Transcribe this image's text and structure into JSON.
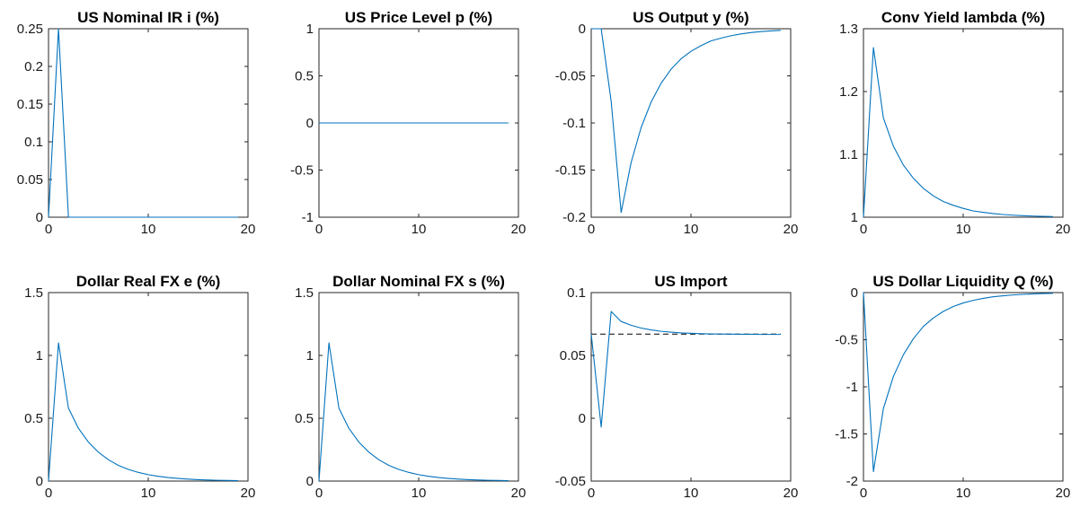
{
  "figure": {
    "background": "#ffffff",
    "line_color": "#0072BD",
    "axis_color": "#262626",
    "ref_line_color": "#000000"
  },
  "chart_data": [
    {
      "type": "line",
      "title": "US Nominal IR i (%)",
      "xlim": [
        0,
        20
      ],
      "ylim": [
        0,
        0.25
      ],
      "xticks": [
        0,
        10,
        20
      ],
      "xtick_labels": [
        "0",
        "10",
        "20"
      ],
      "yticks": [
        0,
        0.05,
        0.1,
        0.15,
        0.2,
        0.25
      ],
      "ytick_labels": [
        "0",
        "0.05",
        "0.1",
        "0.15",
        "0.2",
        "0.25"
      ],
      "grid": false,
      "series": [
        {
          "x": [
            0,
            1,
            2,
            3,
            4,
            5,
            6,
            7,
            8,
            9,
            10,
            11,
            12,
            13,
            14,
            15,
            16,
            17,
            18,
            19
          ],
          "values": [
            0,
            0.25,
            0,
            0,
            0,
            0,
            0,
            0,
            0,
            0,
            0,
            0,
            0,
            0,
            0,
            0,
            0,
            0,
            0,
            0
          ]
        }
      ]
    },
    {
      "type": "line",
      "title": "US Price Level p (%)",
      "xlim": [
        0,
        20
      ],
      "ylim": [
        -1,
        1
      ],
      "xticks": [
        0,
        10,
        20
      ],
      "xtick_labels": [
        "0",
        "10",
        "20"
      ],
      "yticks": [
        -1,
        -0.5,
        0,
        0.5,
        1
      ],
      "ytick_labels": [
        "-1",
        "-0.5",
        "0",
        "0.5",
        "1"
      ],
      "grid": false,
      "series": [
        {
          "x": [
            0,
            1,
            2,
            3,
            4,
            5,
            6,
            7,
            8,
            9,
            10,
            11,
            12,
            13,
            14,
            15,
            16,
            17,
            18,
            19
          ],
          "values": [
            0,
            0,
            0,
            0,
            0,
            0,
            0,
            0,
            0,
            0,
            0,
            0,
            0,
            0,
            0,
            0,
            0,
            0,
            0,
            0
          ]
        }
      ]
    },
    {
      "type": "line",
      "title": "US Output y (%)",
      "xlim": [
        0,
        20
      ],
      "ylim": [
        -0.2,
        0
      ],
      "xticks": [
        0,
        10,
        20
      ],
      "xtick_labels": [
        "0",
        "10",
        "20"
      ],
      "yticks": [
        -0.2,
        -0.15,
        -0.1,
        -0.05,
        0
      ],
      "ytick_labels": [
        "-0.2",
        "-0.15",
        "-0.1",
        "-0.05",
        "0"
      ],
      "grid": false,
      "series": [
        {
          "x": [
            0,
            1,
            2,
            3,
            4,
            5,
            6,
            7,
            8,
            9,
            10,
            11,
            12,
            13,
            14,
            15,
            16,
            17,
            18,
            19
          ],
          "values": [
            0,
            0,
            -0.077,
            -0.195,
            -0.142,
            -0.105,
            -0.078,
            -0.058,
            -0.043,
            -0.032,
            -0.024,
            -0.018,
            -0.013,
            -0.01,
            -0.0075,
            -0.0055,
            -0.0041,
            -0.003,
            -0.0023,
            -0.0017
          ]
        }
      ]
    },
    {
      "type": "line",
      "title": "Conv Yield lambda (%)",
      "xlim": [
        0,
        20
      ],
      "ylim": [
        1,
        1.3
      ],
      "xticks": [
        0,
        10,
        20
      ],
      "xtick_labels": [
        "0",
        "10",
        "20"
      ],
      "yticks": [
        1,
        1.1,
        1.2,
        1.3
      ],
      "ytick_labels": [
        "1",
        "1.1",
        "1.2",
        "1.3"
      ],
      "grid": false,
      "series": [
        {
          "x": [
            0,
            1,
            2,
            3,
            4,
            5,
            6,
            7,
            8,
            9,
            10,
            11,
            12,
            13,
            14,
            15,
            16,
            17,
            18,
            19
          ],
          "values": [
            1,
            1.27,
            1.158,
            1.113,
            1.083,
            1.062,
            1.046,
            1.034,
            1.025,
            1.019,
            1.014,
            1.01,
            1.0078,
            1.0058,
            1.0043,
            1.0032,
            1.0024,
            1.0018,
            1.0013,
            1.001
          ]
        }
      ]
    },
    {
      "type": "line",
      "title": "Dollar Real FX e (%)",
      "xlim": [
        0,
        20
      ],
      "ylim": [
        0,
        1.5
      ],
      "xticks": [
        0,
        10,
        20
      ],
      "xtick_labels": [
        "0",
        "10",
        "20"
      ],
      "yticks": [
        0,
        0.5,
        1,
        1.5
      ],
      "ytick_labels": [
        "0",
        "0.5",
        "1",
        "1.5"
      ],
      "grid": false,
      "series": [
        {
          "x": [
            0,
            1,
            2,
            3,
            4,
            5,
            6,
            7,
            8,
            9,
            10,
            11,
            12,
            13,
            14,
            15,
            16,
            17,
            18,
            19
          ],
          "values": [
            0,
            1.1,
            0.58,
            0.42,
            0.31,
            0.23,
            0.17,
            0.125,
            0.093,
            0.069,
            0.051,
            0.038,
            0.028,
            0.021,
            0.0155,
            0.0115,
            0.0085,
            0.0063,
            0.0047,
            0.0035
          ]
        }
      ]
    },
    {
      "type": "line",
      "title": "Dollar Nominal FX s (%)",
      "xlim": [
        0,
        20
      ],
      "ylim": [
        0,
        1.5
      ],
      "xticks": [
        0,
        10,
        20
      ],
      "xtick_labels": [
        "0",
        "10",
        "20"
      ],
      "yticks": [
        0,
        0.5,
        1,
        1.5
      ],
      "ytick_labels": [
        "0",
        "0.5",
        "1",
        "1.5"
      ],
      "grid": false,
      "series": [
        {
          "x": [
            0,
            1,
            2,
            3,
            4,
            5,
            6,
            7,
            8,
            9,
            10,
            11,
            12,
            13,
            14,
            15,
            16,
            17,
            18,
            19
          ],
          "values": [
            0,
            1.1,
            0.58,
            0.42,
            0.31,
            0.23,
            0.17,
            0.125,
            0.093,
            0.069,
            0.051,
            0.038,
            0.028,
            0.021,
            0.0155,
            0.0115,
            0.0085,
            0.0063,
            0.0047,
            0.0035
          ]
        }
      ]
    },
    {
      "type": "line",
      "title": "US Import",
      "xlim": [
        0,
        20
      ],
      "ylim": [
        -0.05,
        0.1
      ],
      "xticks": [
        0,
        10,
        20
      ],
      "xtick_labels": [
        "0",
        "10",
        "20"
      ],
      "yticks": [
        -0.05,
        0,
        0.05,
        0.1
      ],
      "ytick_labels": [
        "-0.05",
        "0",
        "0.05",
        "0.1"
      ],
      "grid": false,
      "series": [
        {
          "x": [
            0,
            1,
            2,
            3,
            4,
            5,
            6,
            7,
            8,
            9,
            10,
            11,
            12,
            13,
            14,
            15,
            16,
            17,
            18,
            19
          ],
          "values": [
            0.067,
            -0.007,
            0.085,
            0.077,
            0.074,
            0.0718,
            0.0703,
            0.0692,
            0.0685,
            0.0679,
            0.0676,
            0.0673,
            0.0671,
            0.067,
            0.0669,
            0.0668,
            0.0668,
            0.0667,
            0.0667,
            0.0667
          ]
        }
      ],
      "reference_line": {
        "y": 0.067,
        "x": [
          0,
          19
        ],
        "style": "dashed"
      }
    },
    {
      "type": "line",
      "title": "US Dollar Liquidity Q (%)",
      "xlim": [
        0,
        20
      ],
      "ylim": [
        -2,
        0
      ],
      "xticks": [
        0,
        10,
        20
      ],
      "xtick_labels": [
        "0",
        "10",
        "20"
      ],
      "yticks": [
        -2,
        -1.5,
        -1,
        -0.5,
        0
      ],
      "ytick_labels": [
        "-2",
        "-1.5",
        "-1",
        "-0.5",
        "0"
      ],
      "grid": false,
      "series": [
        {
          "x": [
            0,
            1,
            2,
            3,
            4,
            5,
            6,
            7,
            8,
            9,
            10,
            11,
            12,
            13,
            14,
            15,
            16,
            17,
            18,
            19
          ],
          "values": [
            0,
            -1.9,
            -1.23,
            -0.89,
            -0.66,
            -0.49,
            -0.36,
            -0.27,
            -0.2,
            -0.148,
            -0.11,
            -0.082,
            -0.061,
            -0.045,
            -0.034,
            -0.025,
            -0.019,
            -0.014,
            -0.01,
            -0.0075
          ]
        }
      ]
    }
  ]
}
